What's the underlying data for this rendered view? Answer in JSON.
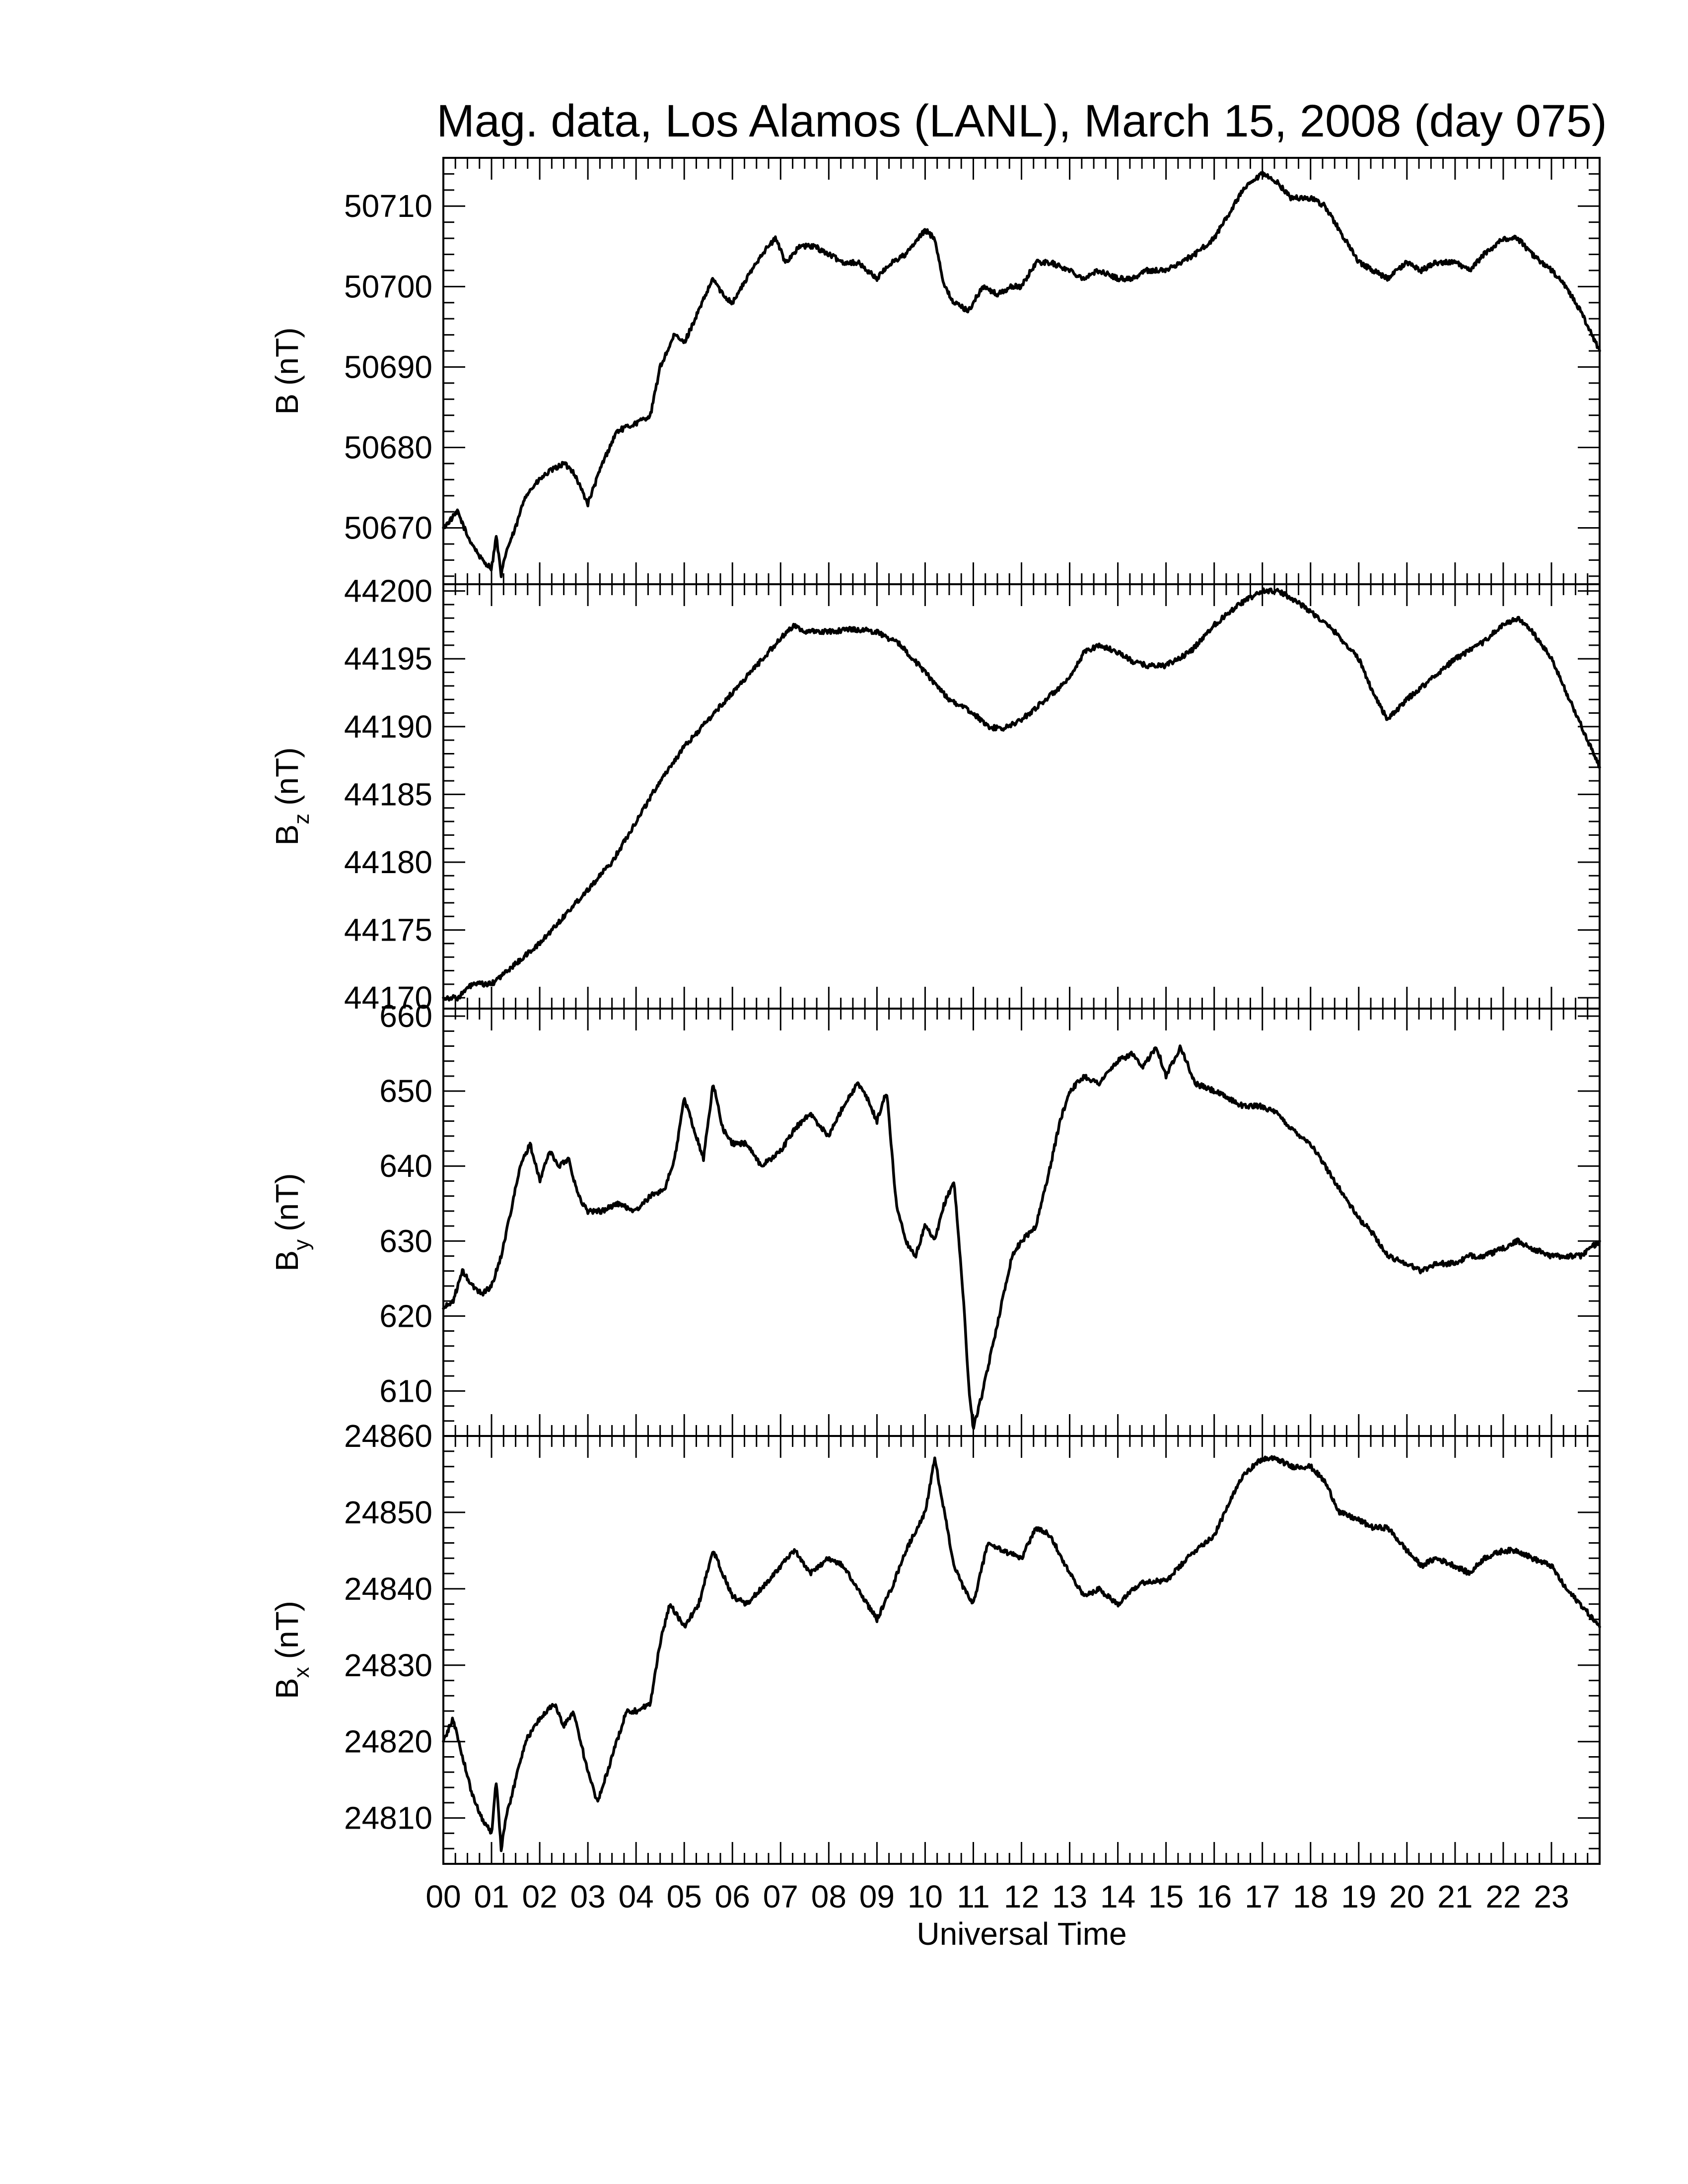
{
  "chart_data": {
    "type": "line",
    "title": "Mag. data, Los Alamos (LANL), March 15, 2008 (day 075)",
    "xlabel": "Universal Time",
    "xlim": [
      0,
      24
    ],
    "x_tick_labels": [
      "00",
      "01",
      "02",
      "03",
      "04",
      "05",
      "06",
      "07",
      "08",
      "09",
      "10",
      "11",
      "12",
      "13",
      "14",
      "15",
      "16",
      "17",
      "18",
      "19",
      "20",
      "21",
      "22",
      "23"
    ],
    "panels": [
      {
        "ylabel_main": "B",
        "ylabel_sub": "",
        "ylabel_unit": "(nT)",
        "ylim": [
          50663,
          50716
        ],
        "yticks": [
          50670,
          50680,
          50690,
          50700,
          50710
        ],
        "x": [
          0,
          0.3,
          0.5,
          0.8,
          1.0,
          1.1,
          1.2,
          1.3,
          1.5,
          1.7,
          2.0,
          2.2,
          2.5,
          2.7,
          3.0,
          3.3,
          3.6,
          4.0,
          4.3,
          4.5,
          4.8,
          5.0,
          5.3,
          5.6,
          5.8,
          6.0,
          6.3,
          6.6,
          6.9,
          7.1,
          7.4,
          7.7,
          8.0,
          8.3,
          8.6,
          9.0,
          9.3,
          9.6,
          10.0,
          10.2,
          10.4,
          10.6,
          10.9,
          11.2,
          11.5,
          11.8,
          12.0,
          12.3,
          12.6,
          13.0,
          13.3,
          13.6,
          14.0,
          14.3,
          14.6,
          15.0,
          15.3,
          15.6,
          16.0,
          16.3,
          16.6,
          17.0,
          17.3,
          17.6,
          18.0,
          18.3,
          18.6,
          19.0,
          19.3,
          19.6,
          20.0,
          20.3,
          20.6,
          21.0,
          21.3,
          21.6,
          22.0,
          22.3,
          22.6,
          23.0,
          23.3,
          23.6,
          24.0
        ],
        "y": [
          50670,
          50672,
          50669,
          50666,
          50665,
          50669,
          50664,
          50667,
          50670,
          50674,
          50676,
          50677,
          50678,
          50677,
          50673,
          50678,
          50682,
          50683,
          50684,
          50690,
          50694,
          50693,
          50697,
          50701,
          50699,
          50698,
          50701,
          50704,
          50706,
          50703,
          50705,
          50705,
          50704,
          50703,
          50703,
          50701,
          50703,
          50704,
          50707,
          50706,
          50700,
          50698,
          50697,
          50700,
          50699,
          50700,
          50700,
          50703,
          50703,
          50702,
          50701,
          50702,
          50701,
          50701,
          50702,
          50702,
          50703,
          50704,
          50706,
          50709,
          50712,
          50714,
          50713,
          50711,
          50711,
          50710,
          50707,
          50703,
          50702,
          50701,
          50703,
          50702,
          50703,
          50703,
          50702,
          50704,
          50706,
          50706,
          50704,
          50702,
          50700,
          50697,
          50692
        ]
      },
      {
        "ylabel_main": "B",
        "ylabel_sub": "z",
        "ylabel_unit": "(nT)",
        "ylim": [
          44169.2,
          44200.5
        ],
        "yticks": [
          44170,
          44175,
          44180,
          44185,
          44190,
          44195,
          44200
        ],
        "x": [
          0,
          0.3,
          0.6,
          1.0,
          1.5,
          2.0,
          2.5,
          3.0,
          3.5,
          4.0,
          4.5,
          5.0,
          5.5,
          6.0,
          6.5,
          7.0,
          7.3,
          7.5,
          8.0,
          8.5,
          9.0,
          9.5,
          10.0,
          10.5,
          11.0,
          11.3,
          11.6,
          12.0,
          12.5,
          13.0,
          13.3,
          13.6,
          14.0,
          14.3,
          14.6,
          15.0,
          15.5,
          16.0,
          16.5,
          17.0,
          17.3,
          17.6,
          18.0,
          18.5,
          19.0,
          19.3,
          19.6,
          20.0,
          20.5,
          21.0,
          21.5,
          22.0,
          22.3,
          22.6,
          23.0,
          23.5,
          24.0
        ],
        "y": [
          44170,
          44170,
          44171,
          44171,
          44172.5,
          44174,
          44176,
          44178,
          44180,
          44183,
          44186,
          44188.5,
          44190.5,
          44192.5,
          44194.5,
          44196.5,
          44197.5,
          44197,
          44197,
          44197.2,
          44197,
          44196,
          44194,
          44192,
          44191,
          44190,
          44189.8,
          44190.5,
          44192,
          44193.5,
          44195.5,
          44196,
          44195.5,
          44194.8,
          44194.5,
          44194.5,
          44195.5,
          44197.5,
          44199,
          44200,
          44200,
          44199.5,
          44198.5,
          44197,
          44195,
          44192.5,
          44190.5,
          44192,
          44193.5,
          44195,
          44196,
          44197.5,
          44198,
          44197,
          44195,
          44191,
          44187
        ]
      },
      {
        "ylabel_main": "B",
        "ylabel_sub": "y",
        "ylabel_unit": "(nT)",
        "ylim": [
          604,
          661
        ],
        "yticks": [
          610,
          620,
          630,
          640,
          650,
          660
        ],
        "x": [
          0,
          0.2,
          0.4,
          0.6,
          0.8,
          1.0,
          1.2,
          1.4,
          1.6,
          1.8,
          2.0,
          2.2,
          2.4,
          2.6,
          2.8,
          3.0,
          3.3,
          3.6,
          4.0,
          4.3,
          4.6,
          4.8,
          5.0,
          5.2,
          5.4,
          5.6,
          5.8,
          6.0,
          6.3,
          6.6,
          7.0,
          7.3,
          7.6,
          8.0,
          8.3,
          8.6,
          8.8,
          9.0,
          9.2,
          9.4,
          9.6,
          9.8,
          10.0,
          10.2,
          10.4,
          10.6,
          10.8,
          10.9,
          11.0,
          11.2,
          11.4,
          11.6,
          11.8,
          12.0,
          12.3,
          12.6,
          12.8,
          13.0,
          13.3,
          13.6,
          14.0,
          14.3,
          14.5,
          14.8,
          15.0,
          15.3,
          15.6,
          16.0,
          16.3,
          16.6,
          17.0,
          17.3,
          17.6,
          18.0,
          18.3,
          18.6,
          19.0,
          19.3,
          19.6,
          20.0,
          20.3,
          20.6,
          21.0,
          21.3,
          21.6,
          22.0,
          22.3,
          22.6,
          23.0,
          23.3,
          23.6,
          24.0
        ],
        "y": [
          621,
          622,
          626,
          624,
          623,
          624,
          628,
          634,
          640,
          643,
          638,
          642,
          640,
          641,
          636,
          634,
          634,
          635,
          634,
          636,
          637,
          641,
          649,
          645,
          641,
          651,
          645,
          643,
          643,
          640,
          642,
          645,
          647,
          644,
          648,
          651,
          649,
          646,
          650,
          635,
          630,
          628,
          632,
          630,
          635,
          638,
          622,
          611,
          605,
          610,
          616,
          622,
          628,
          630,
          632,
          640,
          646,
          650,
          652,
          651,
          654,
          655,
          653,
          656,
          652,
          656,
          651,
          650,
          649,
          648,
          648,
          647,
          645,
          643,
          640,
          637,
          633,
          631,
          628,
          627,
          626,
          627,
          627,
          628,
          628,
          629,
          630,
          629,
          628,
          628,
          628,
          630
        ]
      },
      {
        "ylabel_main": "B",
        "ylabel_sub": "x",
        "ylabel_unit": "(nT)",
        "ylim": [
          24804,
          24860
        ],
        "yticks": [
          24810,
          24820,
          24830,
          24840,
          24850,
          24860
        ],
        "x": [
          0,
          0.2,
          0.4,
          0.6,
          0.8,
          1.0,
          1.1,
          1.2,
          1.3,
          1.5,
          1.7,
          2.0,
          2.3,
          2.5,
          2.7,
          3.0,
          3.2,
          3.5,
          3.8,
          4.0,
          4.3,
          4.5,
          4.7,
          5.0,
          5.3,
          5.6,
          5.8,
          6.0,
          6.3,
          6.6,
          7.0,
          7.3,
          7.6,
          8.0,
          8.3,
          8.6,
          9.0,
          9.3,
          9.6,
          10.0,
          10.2,
          10.4,
          10.6,
          10.8,
          11.0,
          11.3,
          11.6,
          12.0,
          12.3,
          12.6,
          13.0,
          13.3,
          13.6,
          14.0,
          14.3,
          14.6,
          15.0,
          15.3,
          15.6,
          16.0,
          16.3,
          16.6,
          17.0,
          17.3,
          17.6,
          18.0,
          18.3,
          18.6,
          19.0,
          19.3,
          19.6,
          20.0,
          20.3,
          20.6,
          21.0,
          21.3,
          21.6,
          22.0,
          22.3,
          22.6,
          23.0,
          23.3,
          23.6,
          24.0
        ],
        "y": [
          24820,
          24823,
          24818,
          24813,
          24810,
          24808,
          24815,
          24806,
          24810,
          24815,
          24820,
          24823,
          24825,
          24822,
          24824,
          24816,
          24812,
          24818,
          24824,
          24824,
          24825,
          24833,
          24838,
          24835,
          24838,
          24845,
          24842,
          24839,
          24838,
          24840,
          24843,
          24845,
          24842,
          24844,
          24843,
          24840,
          24836,
          24840,
          24845,
          24850,
          24857,
          24850,
          24843,
          24840,
          24838,
          24846,
          24845,
          24844,
          24848,
          24847,
          24842,
          24839,
          24840,
          24838,
          24840,
          24841,
          24841,
          24843,
          24845,
          24847,
          24851,
          24855,
          24857,
          24857,
          24856,
          24856,
          24854,
          24850,
          24849,
          24848,
          24848,
          24845,
          24843,
          24844,
          24843,
          24842,
          24844,
          24845,
          24845,
          24844,
          24843,
          24840,
          24838,
          24835
        ]
      }
    ]
  }
}
